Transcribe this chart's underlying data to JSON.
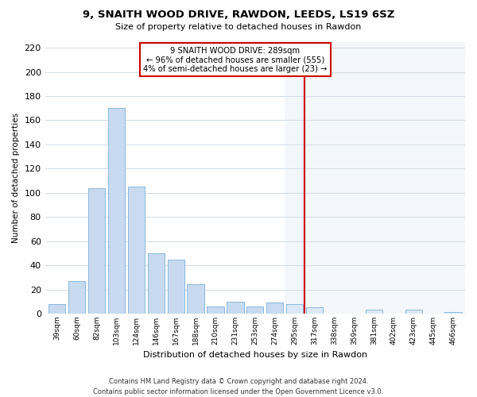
{
  "title": "9, SNAITH WOOD DRIVE, RAWDON, LEEDS, LS19 6SZ",
  "subtitle": "Size of property relative to detached houses in Rawdon",
  "xlabel": "Distribution of detached houses by size in Rawdon",
  "ylabel": "Number of detached properties",
  "bin_labels": [
    "39sqm",
    "60sqm",
    "82sqm",
    "103sqm",
    "124sqm",
    "146sqm",
    "167sqm",
    "188sqm",
    "210sqm",
    "231sqm",
    "253sqm",
    "274sqm",
    "295sqm",
    "317sqm",
    "338sqm",
    "359sqm",
    "381sqm",
    "402sqm",
    "423sqm",
    "445sqm",
    "466sqm"
  ],
  "bar_heights": [
    8,
    27,
    104,
    170,
    105,
    50,
    45,
    24,
    6,
    10,
    6,
    9,
    8,
    5,
    0,
    0,
    3,
    0,
    3,
    0,
    1
  ],
  "bar_color_normal": "#c8daf0",
  "bar_color_right": "#dce8f5",
  "bar_edge_color": "#7ab0d8",
  "vline_x_index": 12,
  "vline_color": "#cc0000",
  "annotation_line1": "9 SNAITH WOOD DRIVE: 289sqm",
  "annotation_line2": "← 96% of detached houses are smaller (555)",
  "annotation_line3": "4% of semi-detached houses are larger (23) →",
  "annotation_box_color": "#ffffff",
  "annotation_box_edge": "#cc0000",
  "ylim": [
    0,
    225
  ],
  "yticks": [
    0,
    20,
    40,
    60,
    80,
    100,
    120,
    140,
    160,
    180,
    200,
    220
  ],
  "footer_text": "Contains HM Land Registry data © Crown copyright and database right 2024.\nContains public sector information licensed under the Open Government Licence v3.0.",
  "bg_color": "#ffffff",
  "grid_color": "#d0dcea",
  "right_bg_color": "#e8f0f8"
}
